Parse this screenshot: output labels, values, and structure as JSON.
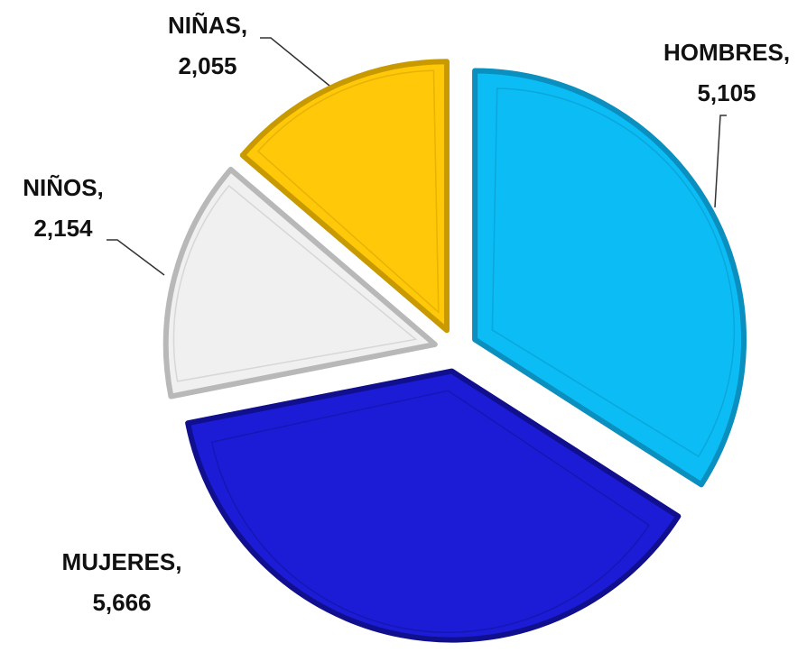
{
  "chart_data": {
    "type": "pie",
    "categories": [
      "HOMBRES,",
      "MUJERES,",
      "NIÑOS,",
      "NIÑAS,"
    ],
    "values": [
      5105,
      5666,
      2154,
      2055
    ],
    "value_labels": [
      "5,105",
      "5,666",
      "2,154",
      "2,055"
    ],
    "colors": [
      "#0bbcf5",
      "#1c1cd6",
      "#f0f0f0",
      "#ffc808"
    ],
    "stroke_colors": [
      "#0a8fbf",
      "#10108f",
      "#b8b8b8",
      "#c99a00"
    ]
  }
}
